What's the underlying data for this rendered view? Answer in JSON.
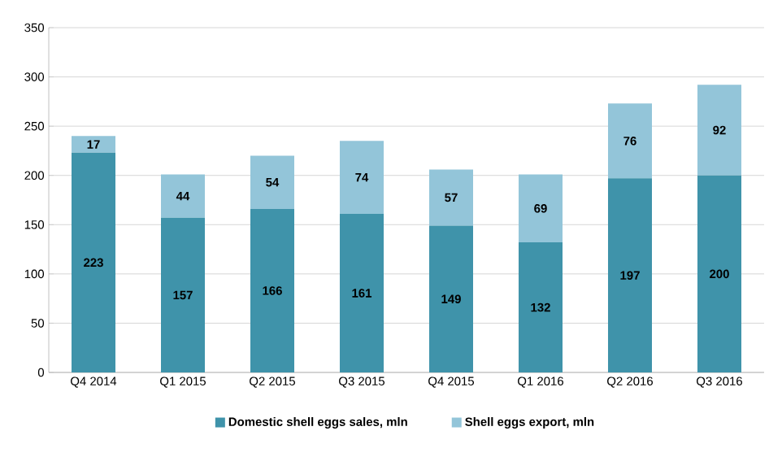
{
  "chart_data": {
    "type": "bar",
    "stacked": true,
    "data_labels": true,
    "grid": "y",
    "legend": "bottom",
    "categories": [
      "Q4 2014",
      "Q1 2015",
      "Q2 2015",
      "Q3 2015",
      "Q4 2015",
      "Q1 2016",
      "Q2 2016",
      "Q3 2016"
    ],
    "series": [
      {
        "name": "Domestic shell eggs sales, mln",
        "color": "#3f93aa",
        "values": [
          223,
          157,
          166,
          161,
          149,
          132,
          197,
          200
        ]
      },
      {
        "name": "Shell eggs export, mln",
        "color": "#93c5d9",
        "values": [
          17,
          44,
          54,
          74,
          57,
          69,
          76,
          92
        ]
      }
    ],
    "ylim": [
      0,
      350
    ],
    "yticks": [
      0,
      50,
      100,
      150,
      200,
      250,
      300,
      350
    ]
  }
}
